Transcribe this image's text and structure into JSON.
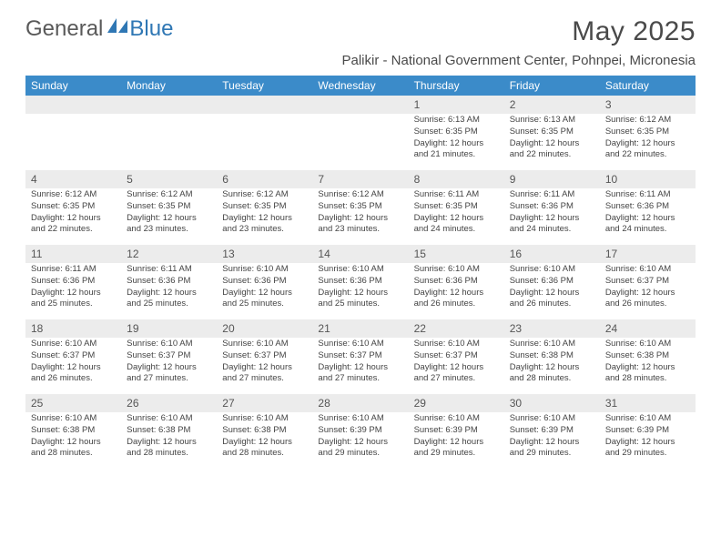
{
  "brand": {
    "part1": "General",
    "part2": "Blue"
  },
  "colors": {
    "header_bg": "#3b8bc9",
    "header_fg": "#ffffff",
    "daynum_bg": "#ececec",
    "text": "#444444",
    "title": "#4a4a4a",
    "logo_accent": "#2f77b4"
  },
  "title": "May 2025",
  "location": "Palikir - National Government Center, Pohnpei, Micronesia",
  "day_names": [
    "Sunday",
    "Monday",
    "Tuesday",
    "Wednesday",
    "Thursday",
    "Friday",
    "Saturday"
  ],
  "weeks": [
    [
      null,
      null,
      null,
      null,
      {
        "n": "1",
        "sr": "Sunrise: 6:13 AM",
        "ss": "Sunset: 6:35 PM",
        "dl": "Daylight: 12 hours and 21 minutes."
      },
      {
        "n": "2",
        "sr": "Sunrise: 6:13 AM",
        "ss": "Sunset: 6:35 PM",
        "dl": "Daylight: 12 hours and 22 minutes."
      },
      {
        "n": "3",
        "sr": "Sunrise: 6:12 AM",
        "ss": "Sunset: 6:35 PM",
        "dl": "Daylight: 12 hours and 22 minutes."
      }
    ],
    [
      {
        "n": "4",
        "sr": "Sunrise: 6:12 AM",
        "ss": "Sunset: 6:35 PM",
        "dl": "Daylight: 12 hours and 22 minutes."
      },
      {
        "n": "5",
        "sr": "Sunrise: 6:12 AM",
        "ss": "Sunset: 6:35 PM",
        "dl": "Daylight: 12 hours and 23 minutes."
      },
      {
        "n": "6",
        "sr": "Sunrise: 6:12 AM",
        "ss": "Sunset: 6:35 PM",
        "dl": "Daylight: 12 hours and 23 minutes."
      },
      {
        "n": "7",
        "sr": "Sunrise: 6:12 AM",
        "ss": "Sunset: 6:35 PM",
        "dl": "Daylight: 12 hours and 23 minutes."
      },
      {
        "n": "8",
        "sr": "Sunrise: 6:11 AM",
        "ss": "Sunset: 6:35 PM",
        "dl": "Daylight: 12 hours and 24 minutes."
      },
      {
        "n": "9",
        "sr": "Sunrise: 6:11 AM",
        "ss": "Sunset: 6:36 PM",
        "dl": "Daylight: 12 hours and 24 minutes."
      },
      {
        "n": "10",
        "sr": "Sunrise: 6:11 AM",
        "ss": "Sunset: 6:36 PM",
        "dl": "Daylight: 12 hours and 24 minutes."
      }
    ],
    [
      {
        "n": "11",
        "sr": "Sunrise: 6:11 AM",
        "ss": "Sunset: 6:36 PM",
        "dl": "Daylight: 12 hours and 25 minutes."
      },
      {
        "n": "12",
        "sr": "Sunrise: 6:11 AM",
        "ss": "Sunset: 6:36 PM",
        "dl": "Daylight: 12 hours and 25 minutes."
      },
      {
        "n": "13",
        "sr": "Sunrise: 6:10 AM",
        "ss": "Sunset: 6:36 PM",
        "dl": "Daylight: 12 hours and 25 minutes."
      },
      {
        "n": "14",
        "sr": "Sunrise: 6:10 AM",
        "ss": "Sunset: 6:36 PM",
        "dl": "Daylight: 12 hours and 25 minutes."
      },
      {
        "n": "15",
        "sr": "Sunrise: 6:10 AM",
        "ss": "Sunset: 6:36 PM",
        "dl": "Daylight: 12 hours and 26 minutes."
      },
      {
        "n": "16",
        "sr": "Sunrise: 6:10 AM",
        "ss": "Sunset: 6:36 PM",
        "dl": "Daylight: 12 hours and 26 minutes."
      },
      {
        "n": "17",
        "sr": "Sunrise: 6:10 AM",
        "ss": "Sunset: 6:37 PM",
        "dl": "Daylight: 12 hours and 26 minutes."
      }
    ],
    [
      {
        "n": "18",
        "sr": "Sunrise: 6:10 AM",
        "ss": "Sunset: 6:37 PM",
        "dl": "Daylight: 12 hours and 26 minutes."
      },
      {
        "n": "19",
        "sr": "Sunrise: 6:10 AM",
        "ss": "Sunset: 6:37 PM",
        "dl": "Daylight: 12 hours and 27 minutes."
      },
      {
        "n": "20",
        "sr": "Sunrise: 6:10 AM",
        "ss": "Sunset: 6:37 PM",
        "dl": "Daylight: 12 hours and 27 minutes."
      },
      {
        "n": "21",
        "sr": "Sunrise: 6:10 AM",
        "ss": "Sunset: 6:37 PM",
        "dl": "Daylight: 12 hours and 27 minutes."
      },
      {
        "n": "22",
        "sr": "Sunrise: 6:10 AM",
        "ss": "Sunset: 6:37 PM",
        "dl": "Daylight: 12 hours and 27 minutes."
      },
      {
        "n": "23",
        "sr": "Sunrise: 6:10 AM",
        "ss": "Sunset: 6:38 PM",
        "dl": "Daylight: 12 hours and 28 minutes."
      },
      {
        "n": "24",
        "sr": "Sunrise: 6:10 AM",
        "ss": "Sunset: 6:38 PM",
        "dl": "Daylight: 12 hours and 28 minutes."
      }
    ],
    [
      {
        "n": "25",
        "sr": "Sunrise: 6:10 AM",
        "ss": "Sunset: 6:38 PM",
        "dl": "Daylight: 12 hours and 28 minutes."
      },
      {
        "n": "26",
        "sr": "Sunrise: 6:10 AM",
        "ss": "Sunset: 6:38 PM",
        "dl": "Daylight: 12 hours and 28 minutes."
      },
      {
        "n": "27",
        "sr": "Sunrise: 6:10 AM",
        "ss": "Sunset: 6:38 PM",
        "dl": "Daylight: 12 hours and 28 minutes."
      },
      {
        "n": "28",
        "sr": "Sunrise: 6:10 AM",
        "ss": "Sunset: 6:39 PM",
        "dl": "Daylight: 12 hours and 29 minutes."
      },
      {
        "n": "29",
        "sr": "Sunrise: 6:10 AM",
        "ss": "Sunset: 6:39 PM",
        "dl": "Daylight: 12 hours and 29 minutes."
      },
      {
        "n": "30",
        "sr": "Sunrise: 6:10 AM",
        "ss": "Sunset: 6:39 PM",
        "dl": "Daylight: 12 hours and 29 minutes."
      },
      {
        "n": "31",
        "sr": "Sunrise: 6:10 AM",
        "ss": "Sunset: 6:39 PM",
        "dl": "Daylight: 12 hours and 29 minutes."
      }
    ]
  ]
}
